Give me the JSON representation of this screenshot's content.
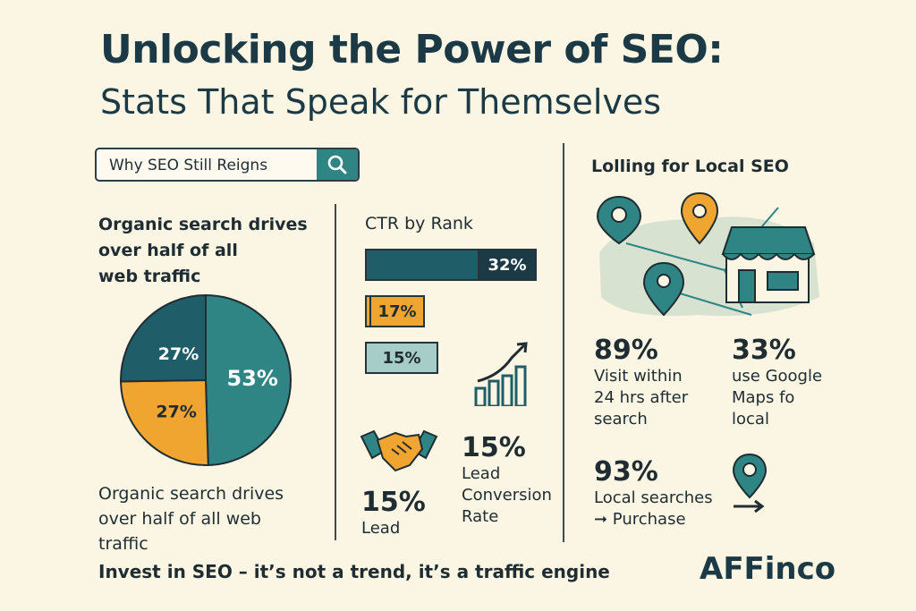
{
  "title": "Unlocking the Power of SEO:",
  "subtitle": "Stats That Speak for Themselves",
  "search": {
    "label": "Why SEO Still Reigns",
    "icon": "search-icon"
  },
  "left": {
    "heading_lines": [
      "Organic search drives",
      "over half of all",
      "web traffic"
    ],
    "caption_lines": [
      "Organic search drives",
      "over half of all web",
      "traffic"
    ]
  },
  "middle": {
    "heading": "CTR by Rank",
    "lead_stat": {
      "value": "15%",
      "label": "Lead"
    },
    "conversion_stat": {
      "value": "15%",
      "label_lines": [
        "Lead",
        "Conversion",
        "Rate"
      ]
    }
  },
  "right": {
    "heading": "Lolling for Local SEO",
    "stats": [
      {
        "value": "89%",
        "lines": [
          "Visit within",
          "24 hrs after",
          "search"
        ]
      },
      {
        "value": "33%",
        "lines": [
          "use Google",
          "Maps fo",
          "local"
        ]
      },
      {
        "value": "93%",
        "lines": [
          "Local searches",
          "➞ Purchase"
        ]
      }
    ]
  },
  "footer": "Invest in SEO – it’s not a trend, it’s a traffic engine",
  "brand": "AFFinco",
  "colors": {
    "teal": "#2f8584",
    "dark_teal": "#1f5d68",
    "orange": "#f0a531",
    "light_teal": "#a6cdc8",
    "navy": "#1c3a45",
    "background": "#fbf5e3"
  },
  "chart_data": [
    {
      "type": "pie",
      "labels": [
        "53%",
        "27%",
        "27%"
      ],
      "values": [
        53,
        27,
        27
      ],
      "colors": [
        "#2f8584",
        "#f0a531",
        "#1f5d68"
      ]
    },
    {
      "type": "bar",
      "title": "CTR by Rank",
      "values": [
        32,
        17,
        15
      ],
      "labels": [
        "32%",
        "17%",
        "15%"
      ],
      "colors": [
        "#1f5d68",
        "#f0a531",
        "#a6cdc8"
      ]
    }
  ]
}
